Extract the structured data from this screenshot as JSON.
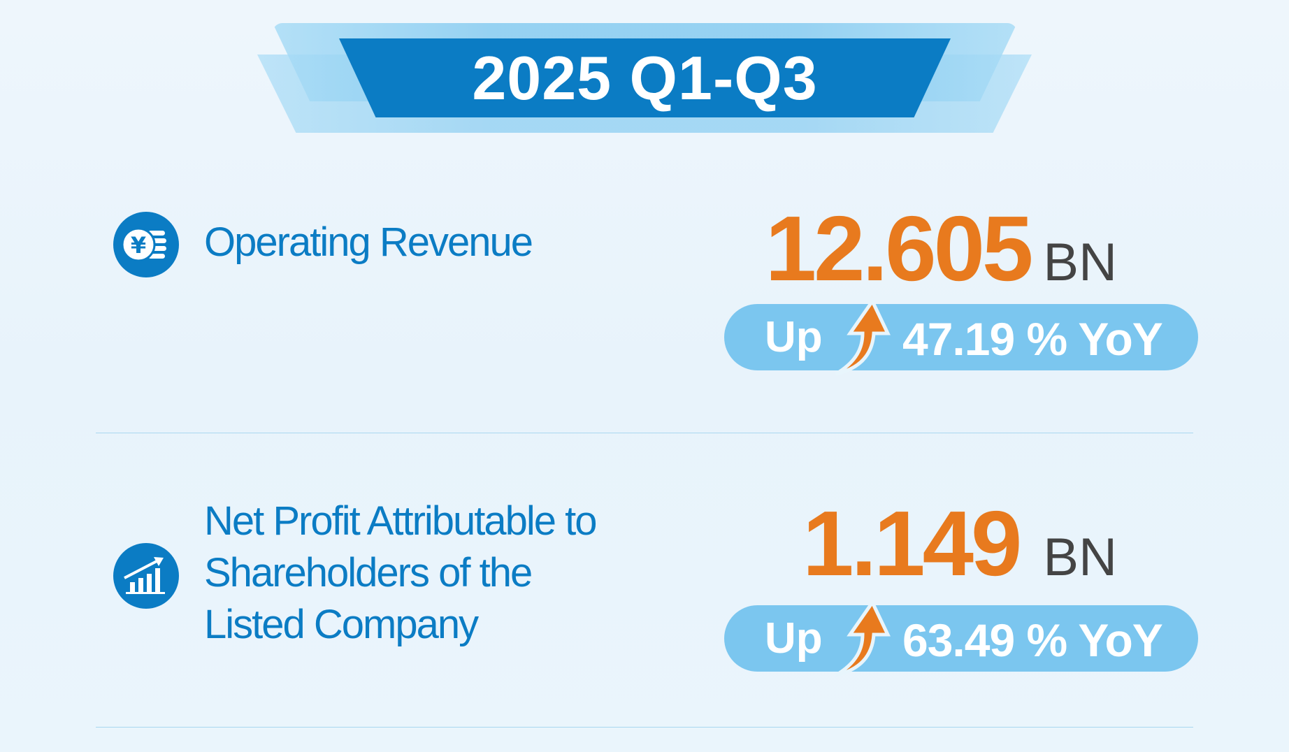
{
  "header": {
    "title": "2025 Q1-Q3"
  },
  "colors": {
    "brand_blue": "#0b7cc4",
    "value_orange": "#e87a1e",
    "pill_blue": "#7bc6ef"
  },
  "metrics": [
    {
      "icon": "yen-coins-icon",
      "label": "Operating Revenue",
      "value": "12.605",
      "unit": "BN",
      "change_direction": "Up",
      "change": "47.19 % YoY"
    },
    {
      "icon": "bar-chart-growth-icon",
      "label_lines": [
        "Net Profit Attributable to",
        "Shareholders of the",
        "Listed Company"
      ],
      "value": "1.149",
      "unit": "BN",
      "change_direction": "Up",
      "change": "63.49 % YoY"
    }
  ]
}
